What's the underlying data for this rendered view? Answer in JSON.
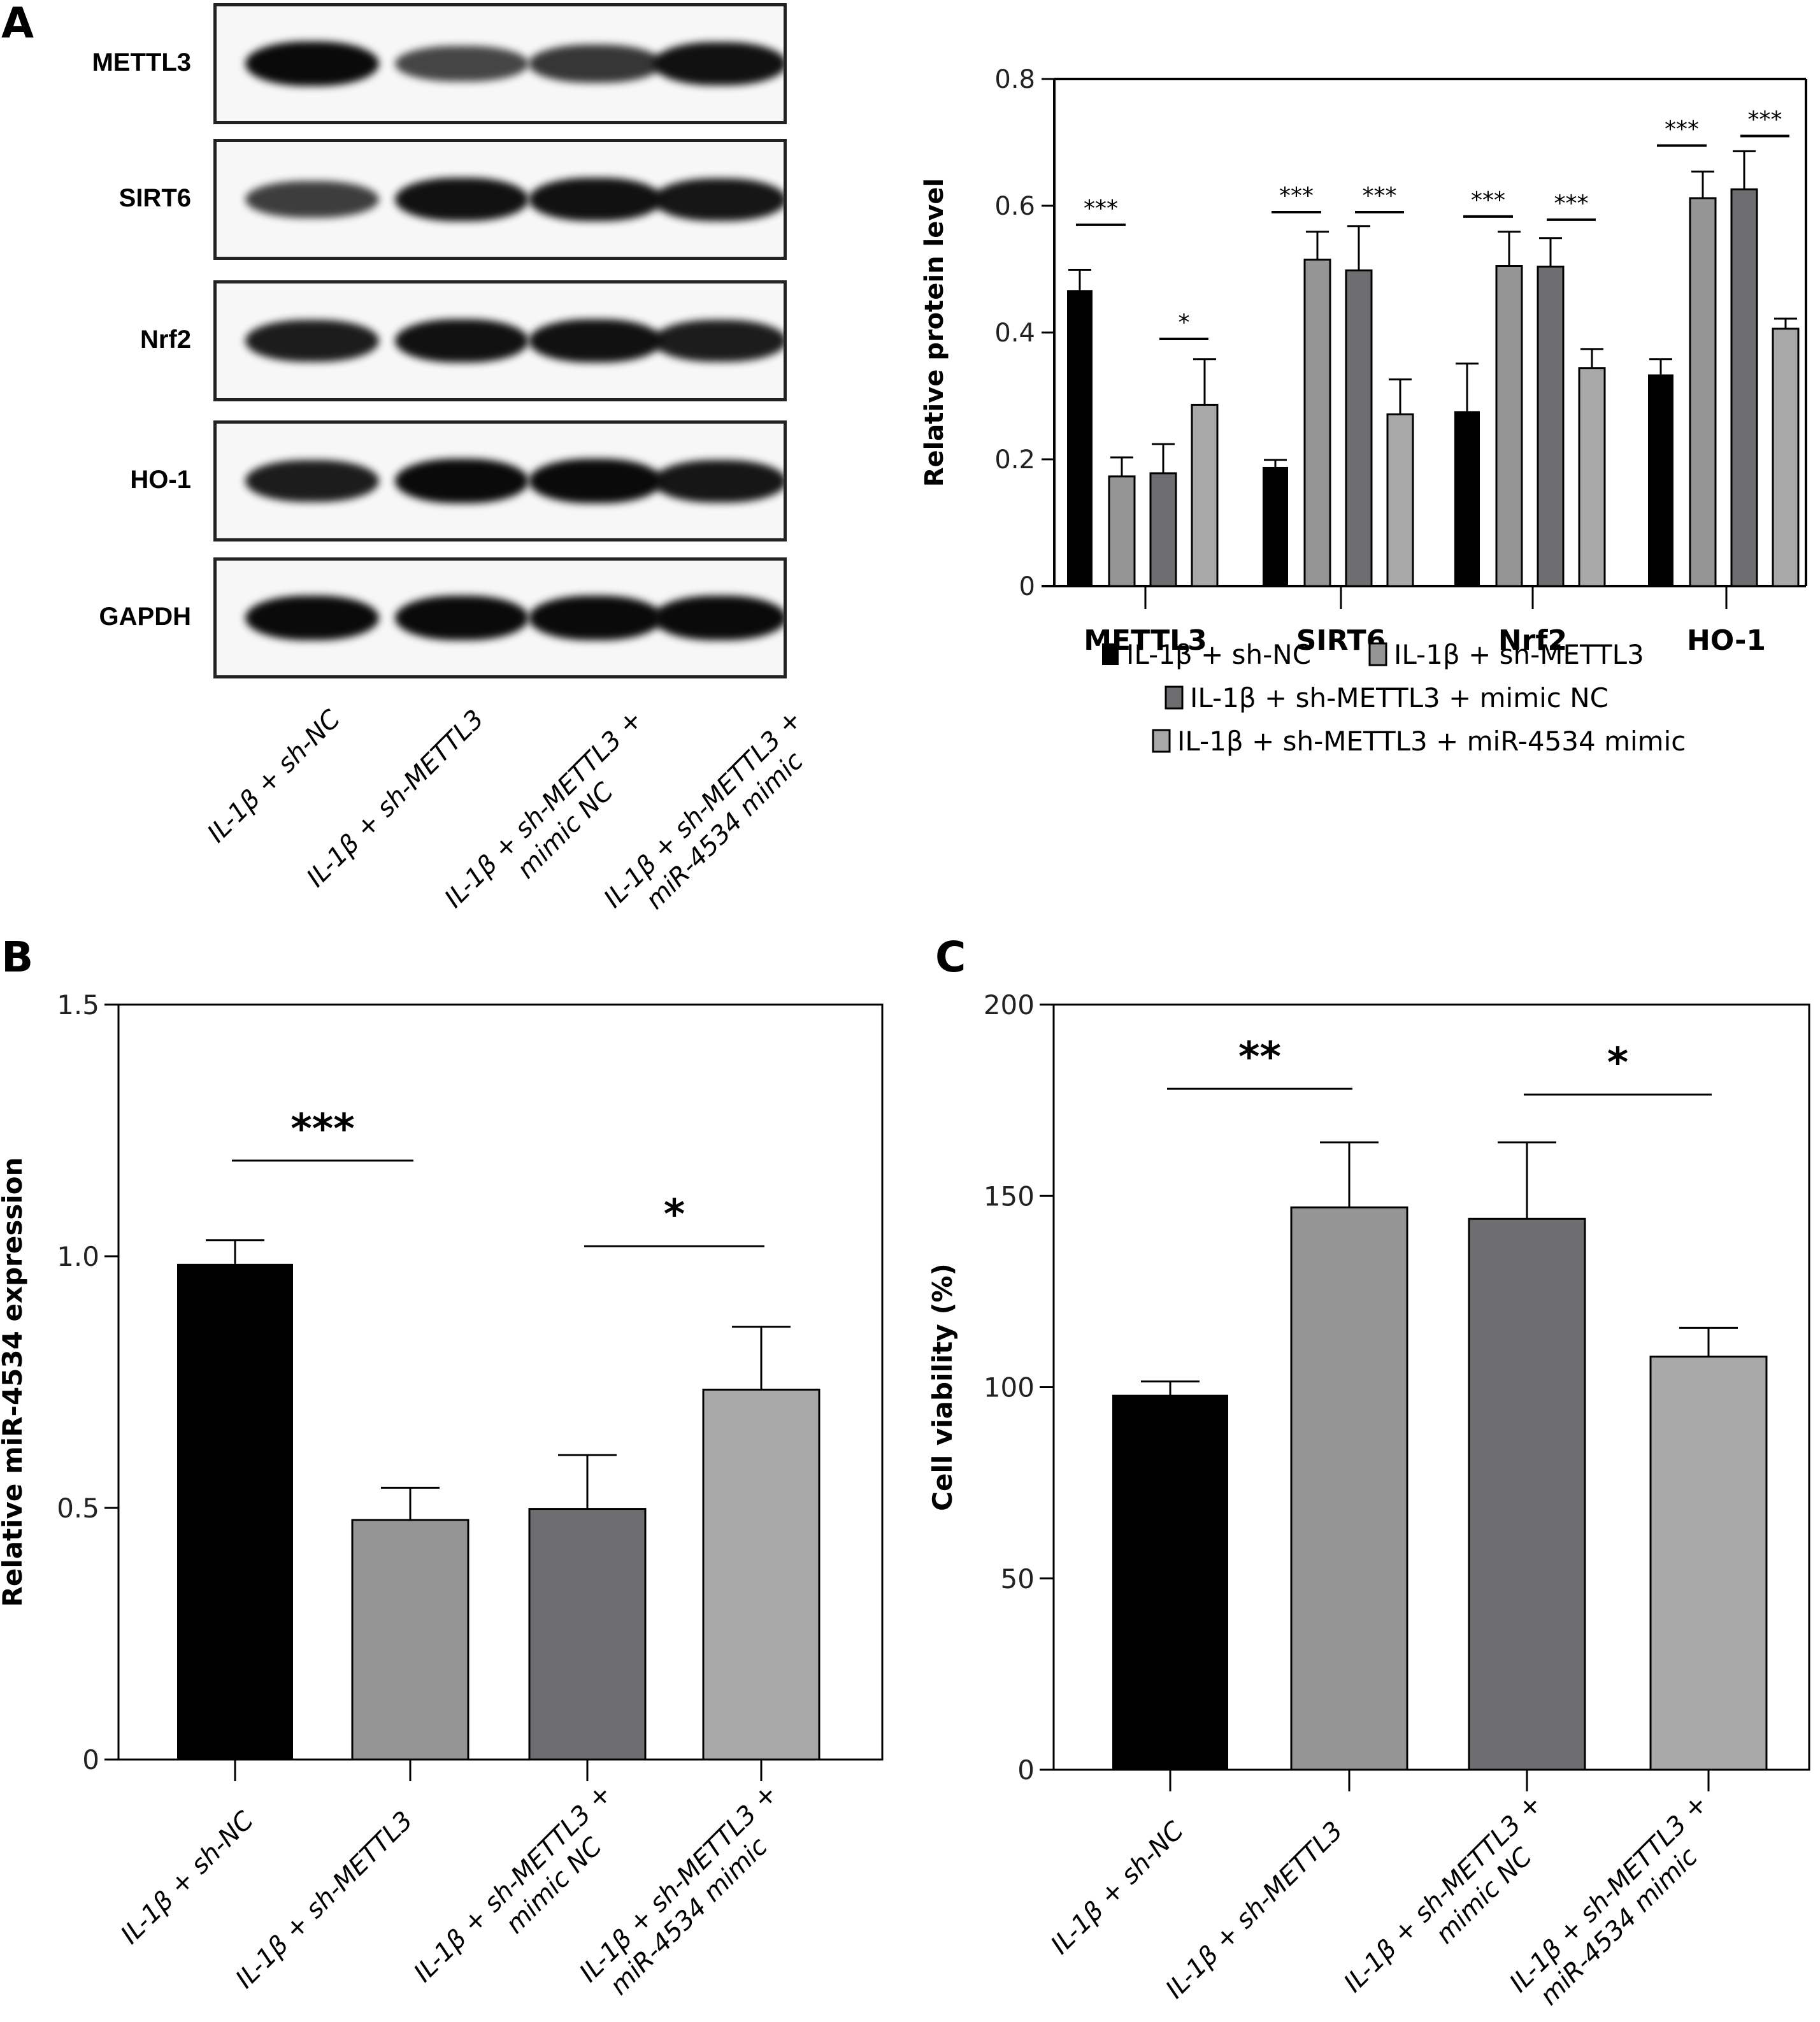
{
  "panels": {
    "a_label": "A",
    "b_label": "B",
    "c_label": "C"
  },
  "groups": [
    "IL-1β + sh-NC",
    "IL-1β + sh-METTL3",
    "IL-1β + sh-METTL3 +\nmimic NC",
    "IL-1β + sh-METTL3 +\nmiR-4534 mimic"
  ],
  "colors": {
    "sh_NC": "#000000",
    "sh_METTL3": "#959595",
    "mimic_NC": "#6e6e70",
    "miR4534_mimic": "#a8a8a8"
  },
  "western_blot": {
    "rows": [
      {
        "label": "METTL3",
        "intensity": [
          1.0,
          0.55,
          0.65,
          0.95
        ]
      },
      {
        "label": "SIRT6",
        "intensity": [
          0.6,
          0.95,
          0.95,
          0.9
        ]
      },
      {
        "label": "Nrf2",
        "intensity": [
          0.85,
          0.95,
          0.95,
          0.85
        ]
      },
      {
        "label": "HO-1",
        "intensity": [
          0.85,
          1.0,
          1.0,
          0.9
        ]
      },
      {
        "label": "GAPDH",
        "intensity": [
          1.0,
          1.0,
          1.0,
          1.0
        ]
      }
    ]
  },
  "chart_data": [
    {
      "id": "A",
      "type": "bar",
      "title": "",
      "xlabel": "",
      "ylabel": "Relative protein level",
      "categories": [
        "METTL3",
        "SIRT6",
        "Nrf2",
        "HO-1"
      ],
      "ylim": [
        0,
        0.8
      ],
      "yticks": [
        "0",
        "0.2",
        "0.4",
        "0.6",
        "0.8"
      ],
      "ytick_values": [
        0,
        0.2,
        0.4,
        0.6,
        0.8
      ],
      "grid": false,
      "legend_position": "bottom",
      "legend": [
        "IL-1β + sh-NC",
        "IL-1β + sh-METTL3",
        "IL-1β + sh-METTL3 + mimic NC",
        "IL-1β + sh-METTL3 + miR-4534 mimic"
      ],
      "series": [
        {
          "name": "IL-1β + sh-NC",
          "values": [
            0.467,
            0.188,
            0.276,
            0.334
          ],
          "error": [
            0.032,
            0.011,
            0.075,
            0.024
          ]
        },
        {
          "name": "IL-1β + sh-METTL3",
          "values": [
            0.173,
            0.515,
            0.505,
            0.612
          ],
          "error": [
            0.03,
            0.044,
            0.054,
            0.042
          ]
        },
        {
          "name": "IL-1β + sh-METTL3 + mimic NC",
          "values": [
            0.178,
            0.498,
            0.504,
            0.626
          ],
          "error": [
            0.046,
            0.07,
            0.045,
            0.06
          ]
        },
        {
          "name": "IL-1β + sh-METTL3 + miR-4534 mimic",
          "values": [
            0.286,
            0.271,
            0.344,
            0.406
          ],
          "error": [
            0.072,
            0.055,
            0.03,
            0.016
          ]
        }
      ],
      "significance": [
        {
          "category": 0,
          "from": 0,
          "to": 1,
          "label": "***",
          "y": 0.57
        },
        {
          "category": 0,
          "from": 2,
          "to": 3,
          "label": "*",
          "y": 0.39
        },
        {
          "category": 1,
          "from": 0,
          "to": 1,
          "label": "***",
          "y": 0.59
        },
        {
          "category": 1,
          "from": 2,
          "to": 3,
          "label": "***",
          "y": 0.59
        },
        {
          "category": 2,
          "from": 0,
          "to": 1,
          "label": "***",
          "y": 0.583
        },
        {
          "category": 2,
          "from": 2,
          "to": 3,
          "label": "***",
          "y": 0.578
        },
        {
          "category": 3,
          "from": 0,
          "to": 1,
          "label": "***",
          "y": 0.695
        },
        {
          "category": 3,
          "from": 2,
          "to": 3,
          "label": "***",
          "y": 0.71
        }
      ]
    },
    {
      "id": "B",
      "type": "bar",
      "title": "",
      "xlabel": "",
      "ylabel": "Relative miR-4534 expression",
      "categories": [
        "IL-1β + sh-NC",
        "IL-1β + sh-METTL3",
        "IL-1β + sh-METTL3 +\nmimic NC",
        "IL-1β + sh-METTL3 +\nmiR-4534 mimic"
      ],
      "ylim": [
        0,
        1.5
      ],
      "yticks": [
        "0",
        "0.5",
        "1.0",
        "1.5"
      ],
      "ytick_values": [
        0,
        0.5,
        1.0,
        1.5
      ],
      "grid": false,
      "values": [
        0.985,
        0.476,
        0.498,
        0.735
      ],
      "error": [
        0.047,
        0.064,
        0.107,
        0.125
      ],
      "significance": [
        {
          "from": 0,
          "to": 1,
          "label": "***",
          "y": 1.19
        },
        {
          "from": 2,
          "to": 3,
          "label": "*",
          "y": 1.02
        }
      ]
    },
    {
      "id": "C",
      "type": "bar",
      "title": "",
      "xlabel": "",
      "ylabel": "Cell viability (%)",
      "categories": [
        "IL-1β + sh-NC",
        "IL-1β + sh-METTL3",
        "IL-1β + sh-METTL3 +\nmimic NC",
        "IL-1β + sh-METTL3 +\nmiR-4534 mimic"
      ],
      "ylim": [
        0,
        200
      ],
      "yticks": [
        "0",
        "50",
        "100",
        "150",
        "200"
      ],
      "ytick_values": [
        0,
        50,
        100,
        150,
        200
      ],
      "grid": false,
      "values": [
        98,
        147,
        144,
        108
      ],
      "error": [
        3.5,
        17,
        20,
        7.5
      ],
      "significance": [
        {
          "from": 0,
          "to": 1,
          "label": "**",
          "y": 178
        },
        {
          "from": 2,
          "to": 3,
          "label": "*",
          "y": 176.5
        }
      ]
    }
  ]
}
